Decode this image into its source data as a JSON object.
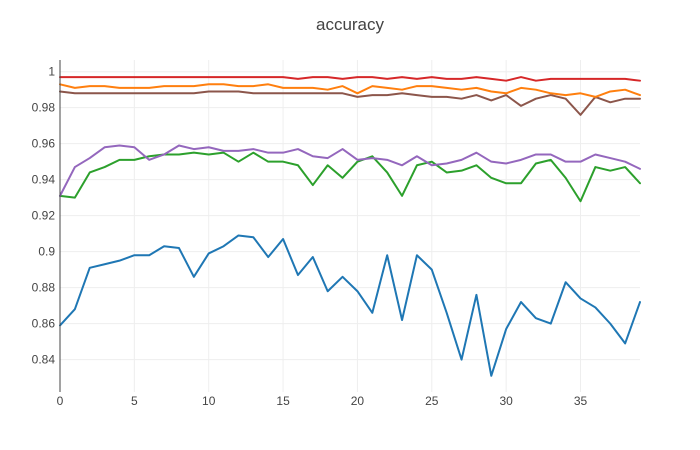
{
  "chart_data": {
    "type": "line",
    "title": "accuracy",
    "xlabel": "",
    "ylabel": "",
    "xlim": [
      0,
      39
    ],
    "ylim": [
      0.822,
      1.0065
    ],
    "x_ticks": [
      0,
      5,
      10,
      15,
      20,
      25,
      30,
      35
    ],
    "y_ticks": [
      0.84,
      0.86,
      0.88,
      0.9,
      0.92,
      0.94,
      0.96,
      0.98,
      1
    ],
    "y_tick_labels": [
      "0.84",
      "0.86",
      "0.88",
      "0.9",
      "0.92",
      "0.94",
      "0.96",
      "0.98",
      "1"
    ],
    "grid": true,
    "legend": "none",
    "x": [
      0,
      1,
      2,
      3,
      4,
      5,
      6,
      7,
      8,
      9,
      10,
      11,
      12,
      13,
      14,
      15,
      16,
      17,
      18,
      19,
      20,
      21,
      22,
      23,
      24,
      25,
      26,
      27,
      28,
      29,
      30,
      31,
      32,
      33,
      34,
      35,
      36,
      37,
      38,
      39
    ],
    "series": [
      {
        "color": "#1f77b4",
        "values": [
          0.859,
          0.868,
          0.891,
          0.893,
          0.895,
          0.898,
          0.898,
          0.903,
          0.902,
          0.886,
          0.899,
          0.903,
          0.909,
          0.908,
          0.897,
          0.907,
          0.887,
          0.897,
          0.878,
          0.886,
          0.878,
          0.866,
          0.898,
          0.862,
          0.898,
          0.89,
          0.866,
          0.84,
          0.876,
          0.831,
          0.857,
          0.872,
          0.863,
          0.86,
          0.883,
          0.874,
          0.869,
          0.86,
          0.849,
          0.872
        ]
      },
      {
        "color": "#2ca02c",
        "values": [
          0.931,
          0.93,
          0.944,
          0.947,
          0.951,
          0.951,
          0.953,
          0.954,
          0.954,
          0.955,
          0.954,
          0.955,
          0.95,
          0.955,
          0.95,
          0.95,
          0.948,
          0.937,
          0.948,
          0.941,
          0.95,
          0.953,
          0.944,
          0.931,
          0.948,
          0.95,
          0.944,
          0.945,
          0.948,
          0.941,
          0.938,
          0.938,
          0.949,
          0.951,
          0.941,
          0.928,
          0.947,
          0.945,
          0.947,
          0.938
        ]
      },
      {
        "color": "#9467bd",
        "values": [
          0.931,
          0.947,
          0.952,
          0.958,
          0.959,
          0.958,
          0.951,
          0.954,
          0.959,
          0.957,
          0.958,
          0.956,
          0.956,
          0.957,
          0.955,
          0.955,
          0.957,
          0.953,
          0.952,
          0.957,
          0.951,
          0.952,
          0.951,
          0.948,
          0.953,
          0.948,
          0.949,
          0.951,
          0.955,
          0.95,
          0.949,
          0.951,
          0.954,
          0.954,
          0.95,
          0.95,
          0.954,
          0.952,
          0.95,
          0.946
        ]
      },
      {
        "color": "#8c564b",
        "values": [
          0.989,
          0.988,
          0.988,
          0.988,
          0.988,
          0.988,
          0.988,
          0.988,
          0.988,
          0.988,
          0.989,
          0.989,
          0.989,
          0.988,
          0.988,
          0.988,
          0.988,
          0.988,
          0.988,
          0.988,
          0.986,
          0.987,
          0.987,
          0.988,
          0.987,
          0.986,
          0.986,
          0.985,
          0.987,
          0.984,
          0.987,
          0.981,
          0.985,
          0.987,
          0.985,
          0.976,
          0.986,
          0.983,
          0.985,
          0.985
        ]
      },
      {
        "color": "#ff7f0e",
        "values": [
          0.993,
          0.991,
          0.992,
          0.992,
          0.991,
          0.991,
          0.991,
          0.992,
          0.992,
          0.992,
          0.993,
          0.993,
          0.992,
          0.992,
          0.993,
          0.991,
          0.991,
          0.991,
          0.99,
          0.992,
          0.988,
          0.992,
          0.991,
          0.99,
          0.992,
          0.992,
          0.991,
          0.99,
          0.991,
          0.989,
          0.988,
          0.991,
          0.99,
          0.988,
          0.987,
          0.988,
          0.986,
          0.989,
          0.99,
          0.987
        ]
      },
      {
        "color": "#d62728",
        "values": [
          0.997,
          0.997,
          0.997,
          0.997,
          0.997,
          0.997,
          0.997,
          0.997,
          0.997,
          0.997,
          0.997,
          0.997,
          0.997,
          0.997,
          0.997,
          0.997,
          0.996,
          0.997,
          0.997,
          0.996,
          0.997,
          0.997,
          0.996,
          0.997,
          0.996,
          0.997,
          0.996,
          0.996,
          0.997,
          0.996,
          0.995,
          0.997,
          0.995,
          0.996,
          0.996,
          0.996,
          0.996,
          0.996,
          0.996,
          0.995
        ]
      }
    ]
  }
}
